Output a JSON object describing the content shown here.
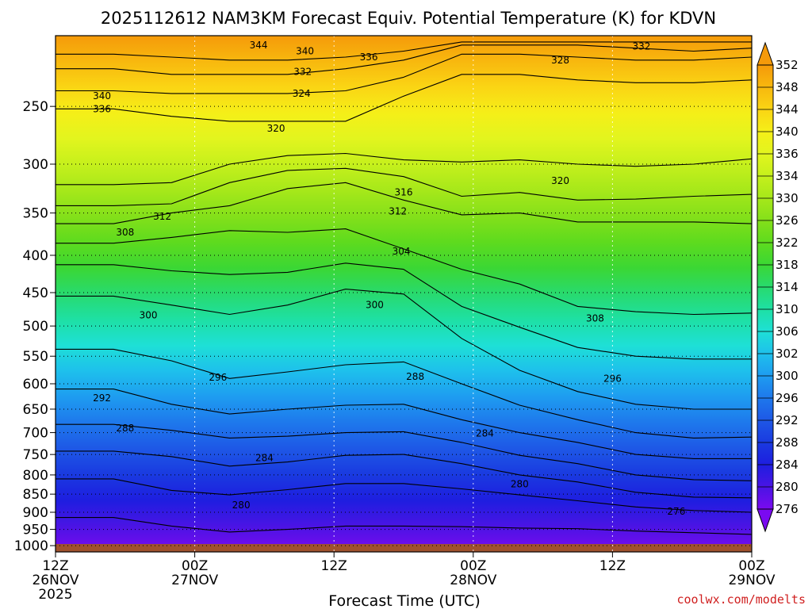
{
  "chart_data": {
    "type": "heatmap",
    "title": "2025112612 NAM3KM Forecast Equiv. Potential Temperature (K) for KDVN",
    "xlabel": "Forecast Time (UTC)",
    "ylabel": "",
    "credit": "coolwx.com/modelts",
    "x_ticks": [
      {
        "hour": 0,
        "l1": "12Z",
        "l2": "26NOV",
        "l3": "2025"
      },
      {
        "hour": 12,
        "l1": "00Z",
        "l2": "27NOV",
        "l3": ""
      },
      {
        "hour": 24,
        "l1": "12Z",
        "l2": "",
        "l3": ""
      },
      {
        "hour": 36,
        "l1": "00Z",
        "l2": "28NOV",
        "l3": ""
      },
      {
        "hour": 48,
        "l1": "12Z",
        "l2": "",
        "l3": ""
      },
      {
        "hour": 60,
        "l1": "00Z",
        "l2": "29NOV",
        "l3": ""
      }
    ],
    "x_range_hours": [
      0,
      60
    ],
    "y_ticks_hpa": [
      "250",
      "300",
      "350",
      "400",
      "450",
      "500",
      "550",
      "600",
      "650",
      "700",
      "750",
      "800",
      "850",
      "900",
      "950",
      "1000"
    ],
    "y_range_hpa": [
      1020,
      200
    ],
    "y_scale": "log",
    "colorbar": {
      "labels": [
        "352",
        "348",
        "344",
        "340",
        "336",
        "334",
        "330",
        "326",
        "322",
        "318",
        "314",
        "310",
        "306",
        "302",
        "300",
        "296",
        "292",
        "288",
        "284",
        "280",
        "276"
      ],
      "colors": [
        "#f59a0a",
        "#f8b80e",
        "#fad514",
        "#f5ef18",
        "#e2f51e",
        "#c5f01c",
        "#a6e81a",
        "#84e01a",
        "#5edb1e",
        "#3bd734",
        "#28da6e",
        "#1ee0a4",
        "#1ee0d6",
        "#1ec0ec",
        "#1e9cf0",
        "#1e78ec",
        "#1e58e6",
        "#1a3ae0",
        "#1e1ee0",
        "#4a14e4",
        "#7a0af0"
      ]
    },
    "contours": [
      {
        "k": 336,
        "p": [
          252,
          252,
          258,
          262,
          262,
          262,
          242,
          226,
          226,
          230,
          232,
          232,
          230
        ]
      },
      {
        "k": 332,
        "p": [
          238,
          238,
          240,
          240,
          240,
          238,
          228,
          212,
          212,
          214,
          216,
          216,
          214
        ]
      },
      {
        "k": 328,
        "p": [
          222,
          222,
          226,
          226,
          226,
          222,
          216,
          206,
          206,
          206,
          208,
          210,
          208
        ]
      },
      {
        "k": 324,
        "p": [
          212,
          212,
          214,
          216,
          216,
          214,
          210,
          204,
          204,
          204,
          204,
          204,
          204
        ]
      },
      {
        "k": 320,
        "p": [
          320,
          320,
          318,
          300,
          292,
          290,
          296,
          298,
          296,
          300,
          302,
          300,
          295
        ]
      },
      {
        "k": 316,
        "p": [
          342,
          342,
          340,
          318,
          306,
          304,
          312,
          332,
          328,
          336,
          335,
          332,
          330
        ]
      },
      {
        "k": 312,
        "p": [
          362,
          362,
          350,
          342,
          324,
          318,
          336,
          352,
          350,
          360,
          360,
          360,
          362
        ]
      },
      {
        "k": 308,
        "p": [
          385,
          385,
          378,
          370,
          372,
          368,
          392,
          418,
          438,
          470,
          478,
          482,
          480
        ]
      },
      {
        "k": 304,
        "p": [
          412,
          412,
          420,
          425,
          422,
          410,
          418,
          470,
          502,
          535,
          550,
          555,
          555
        ]
      },
      {
        "k": 300,
        "p": [
          455,
          455,
          468,
          482,
          468,
          445,
          452,
          520,
          575,
          615,
          640,
          650,
          650
        ]
      },
      {
        "k": 296,
        "p": [
          538,
          538,
          558,
          590,
          578,
          565,
          560,
          600,
          642,
          672,
          700,
          712,
          710
        ]
      },
      {
        "k": 292,
        "p": [
          610,
          610,
          640,
          660,
          650,
          642,
          640,
          672,
          700,
          722,
          750,
          760,
          760
        ]
      },
      {
        "k": 288,
        "p": [
          682,
          682,
          695,
          712,
          708,
          700,
          698,
          722,
          752,
          772,
          800,
          812,
          815
        ]
      },
      {
        "k": 284,
        "p": [
          742,
          742,
          755,
          778,
          768,
          752,
          750,
          772,
          800,
          818,
          845,
          858,
          860
        ]
      },
      {
        "k": 280,
        "p": [
          810,
          810,
          840,
          852,
          838,
          822,
          822,
          836,
          852,
          868,
          885,
          895,
          900
        ]
      },
      {
        "k": 276,
        "p": [
          915,
          915,
          940,
          958,
          950,
          940,
          940,
          942,
          946,
          948,
          955,
          960,
          965
        ]
      }
    ],
    "contour_labels": [
      {
        "text": "344",
        "hour": 17.5,
        "hpa": 206
      },
      {
        "text": "340",
        "hour": 21.5,
        "hpa": 210
      },
      {
        "text": "336",
        "hour": 27,
        "hpa": 214
      },
      {
        "text": "332",
        "hour": 21.3,
        "hpa": 224
      },
      {
        "text": "324",
        "hour": 21.2,
        "hpa": 240
      },
      {
        "text": "320",
        "hour": 19,
        "hpa": 268
      },
      {
        "text": "316",
        "hour": 30,
        "hpa": 328
      },
      {
        "text": "312",
        "hour": 29.5,
        "hpa": 348
      },
      {
        "text": "312",
        "hour": 9.2,
        "hpa": 354
      },
      {
        "text": "308",
        "hour": 6,
        "hpa": 372
      },
      {
        "text": "304",
        "hour": 29.8,
        "hpa": 395
      },
      {
        "text": "300",
        "hour": 27.5,
        "hpa": 468
      },
      {
        "text": "300",
        "hour": 8,
        "hpa": 483
      },
      {
        "text": "308",
        "hour": 46.5,
        "hpa": 488
      },
      {
        "text": "296",
        "hour": 14,
        "hpa": 588
      },
      {
        "text": "288",
        "hour": 31,
        "hpa": 587
      },
      {
        "text": "296",
        "hour": 48,
        "hpa": 590
      },
      {
        "text": "292",
        "hour": 4,
        "hpa": 628
      },
      {
        "text": "328",
        "hour": 43.5,
        "hpa": 216
      },
      {
        "text": "332",
        "hour": 50.5,
        "hpa": 207
      },
      {
        "text": "320",
        "hour": 43.5,
        "hpa": 316
      },
      {
        "text": "340",
        "hour": 4,
        "hpa": 242
      },
      {
        "text": "336",
        "hour": 4,
        "hpa": 252
      },
      {
        "text": "288",
        "hour": 6,
        "hpa": 690
      },
      {
        "text": "284",
        "hour": 18,
        "hpa": 758
      },
      {
        "text": "284",
        "hour": 37,
        "hpa": 702
      },
      {
        "text": "280",
        "hour": 40,
        "hpa": 824
      },
      {
        "text": "280",
        "hour": 16,
        "hpa": 880
      },
      {
        "text": "276",
        "hour": 53.5,
        "hpa": 898
      }
    ],
    "terrain_color": "#a0522d"
  }
}
